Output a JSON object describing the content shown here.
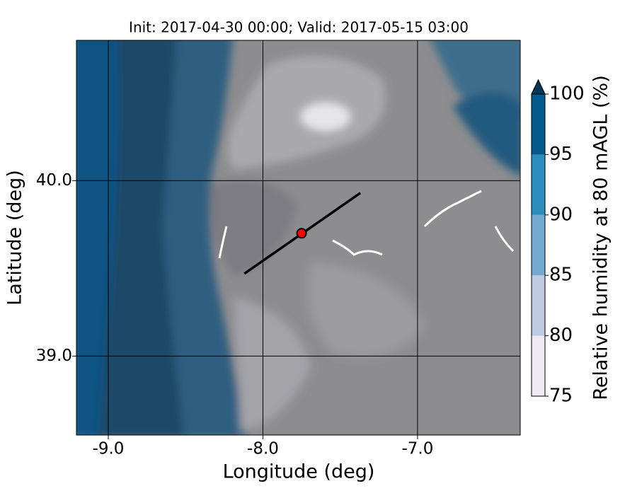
{
  "chart_data": {
    "type": "contour",
    "title": "Init: 2017-04-30 00:00; Valid: 2017-05-15 03:00",
    "x_label": "Longitude (deg)",
    "y_label": "Latitude (deg)",
    "xlim": [
      -9.206,
      -6.336
    ],
    "ylim": [
      38.55,
      40.8
    ],
    "xticks": [
      {
        "value": -9,
        "label": "-9.0"
      },
      {
        "value": -8,
        "label": "-8.0"
      },
      {
        "value": -7,
        "label": "-7.0"
      }
    ],
    "yticks": [
      {
        "value": 39,
        "label": "39.0"
      },
      {
        "value": 40,
        "label": "40.0"
      }
    ],
    "grid": true,
    "line": {
      "x": [
        -8.12,
        -7.37
      ],
      "y": [
        39.47,
        39.93
      ],
      "color": "#000000"
    },
    "point": {
      "x": -7.75,
      "y": 39.7,
      "color": "#ff0000"
    },
    "colorbar": {
      "label": "Relative humidity at 80 mAGL (%)",
      "ticks": [
        75,
        80,
        85,
        90,
        95,
        100
      ],
      "colors": [
        "#efe9f3",
        "#bdc9e1",
        "#74a9cf",
        "#2b8cbe",
        "#045a8d"
      ],
      "extend_color": "#023858"
    }
  }
}
